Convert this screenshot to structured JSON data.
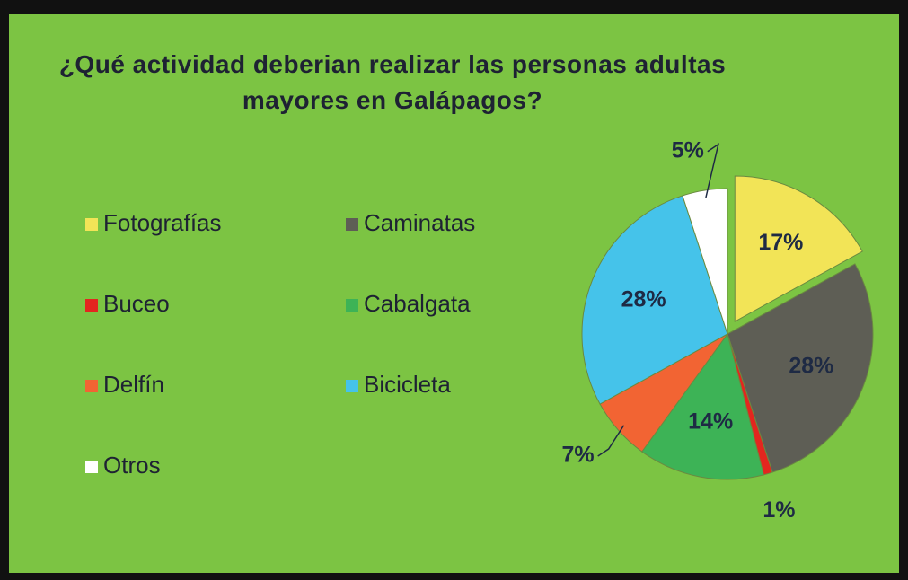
{
  "chart_data": {
    "type": "pie",
    "title": "¿Qué actividad deberian realizar las personas adultas mayores en Galápagos?",
    "categories": [
      "Fotografías",
      "Caminatas",
      "Buceo",
      "Cabalgata",
      "Delfín",
      "Bicicleta",
      "Otros"
    ],
    "values": [
      17,
      28,
      1,
      14,
      7,
      28,
      5
    ],
    "value_labels": [
      "17%",
      "28%",
      "1%",
      "14%",
      "7%",
      "28%",
      "5%"
    ],
    "colors": [
      "#f2e457",
      "#5e5e55",
      "#e3261f",
      "#3db356",
      "#f26433",
      "#45c3ea",
      "#ffffff"
    ],
    "explode": [
      0.1,
      0,
      0,
      0,
      0,
      0,
      0
    ],
    "legend": "left"
  }
}
